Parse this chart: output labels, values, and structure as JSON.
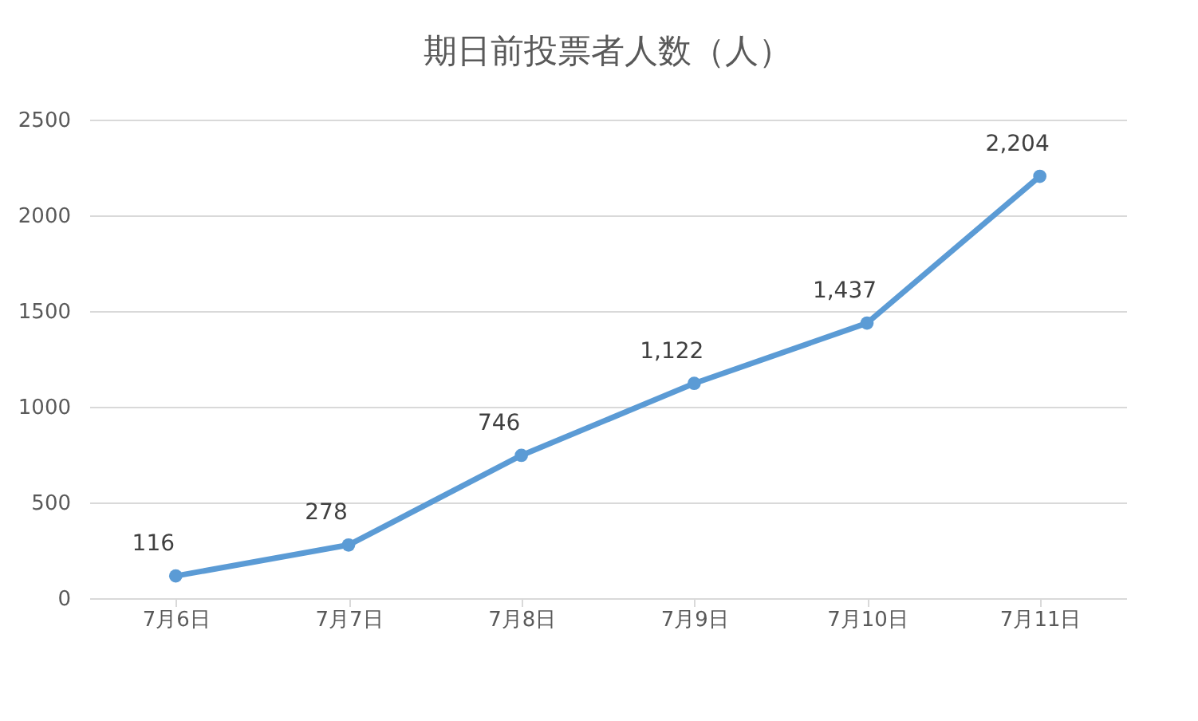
{
  "chart_data": {
    "type": "line",
    "title": "期日前投票者人数（人）",
    "categories": [
      "7月6日",
      "7月7日",
      "7月8日",
      "7月9日",
      "7月10日",
      "7月11日"
    ],
    "series": [
      {
        "color": "#5b9bd5",
        "values": [
          116,
          278,
          746,
          1122,
          1437,
          2204
        ],
        "value_labels": [
          "116",
          "278",
          "746",
          "1,122",
          "1,437",
          "2,204"
        ]
      }
    ],
    "ylim": [
      0,
      2500
    ],
    "yticks": [
      0,
      500,
      1000,
      1500,
      2000,
      2500
    ],
    "grid": "y",
    "marker": "circle",
    "line_style": "solid"
  }
}
